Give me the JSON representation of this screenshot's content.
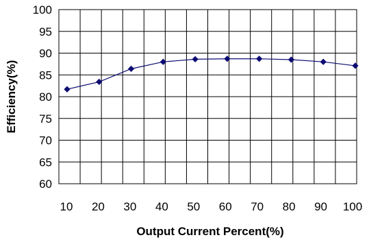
{
  "chart_data": {
    "type": "line",
    "title": "",
    "xlabel": "Output Current Percent(%)",
    "ylabel": "Efficiency(%)",
    "x": [
      10,
      20,
      30,
      40,
      50,
      60,
      70,
      80,
      90,
      100
    ],
    "series": [
      {
        "values": [
          81.7,
          83.4,
          86.4,
          88.0,
          88.6,
          88.7,
          88.7,
          88.5,
          88.0,
          87.1
        ]
      }
    ],
    "xlim": [
      10,
      100
    ],
    "ylim": [
      60,
      100
    ],
    "x_ticks": [
      "10",
      "20",
      "30",
      "40",
      "50",
      "60",
      "70",
      "80",
      "90",
      "100"
    ],
    "y_ticks": [
      "60",
      "65",
      "70",
      "75",
      "80",
      "85",
      "90",
      "95",
      "100"
    ],
    "grid": true,
    "line_color": "#0b0b72",
    "marker": "diamond"
  }
}
